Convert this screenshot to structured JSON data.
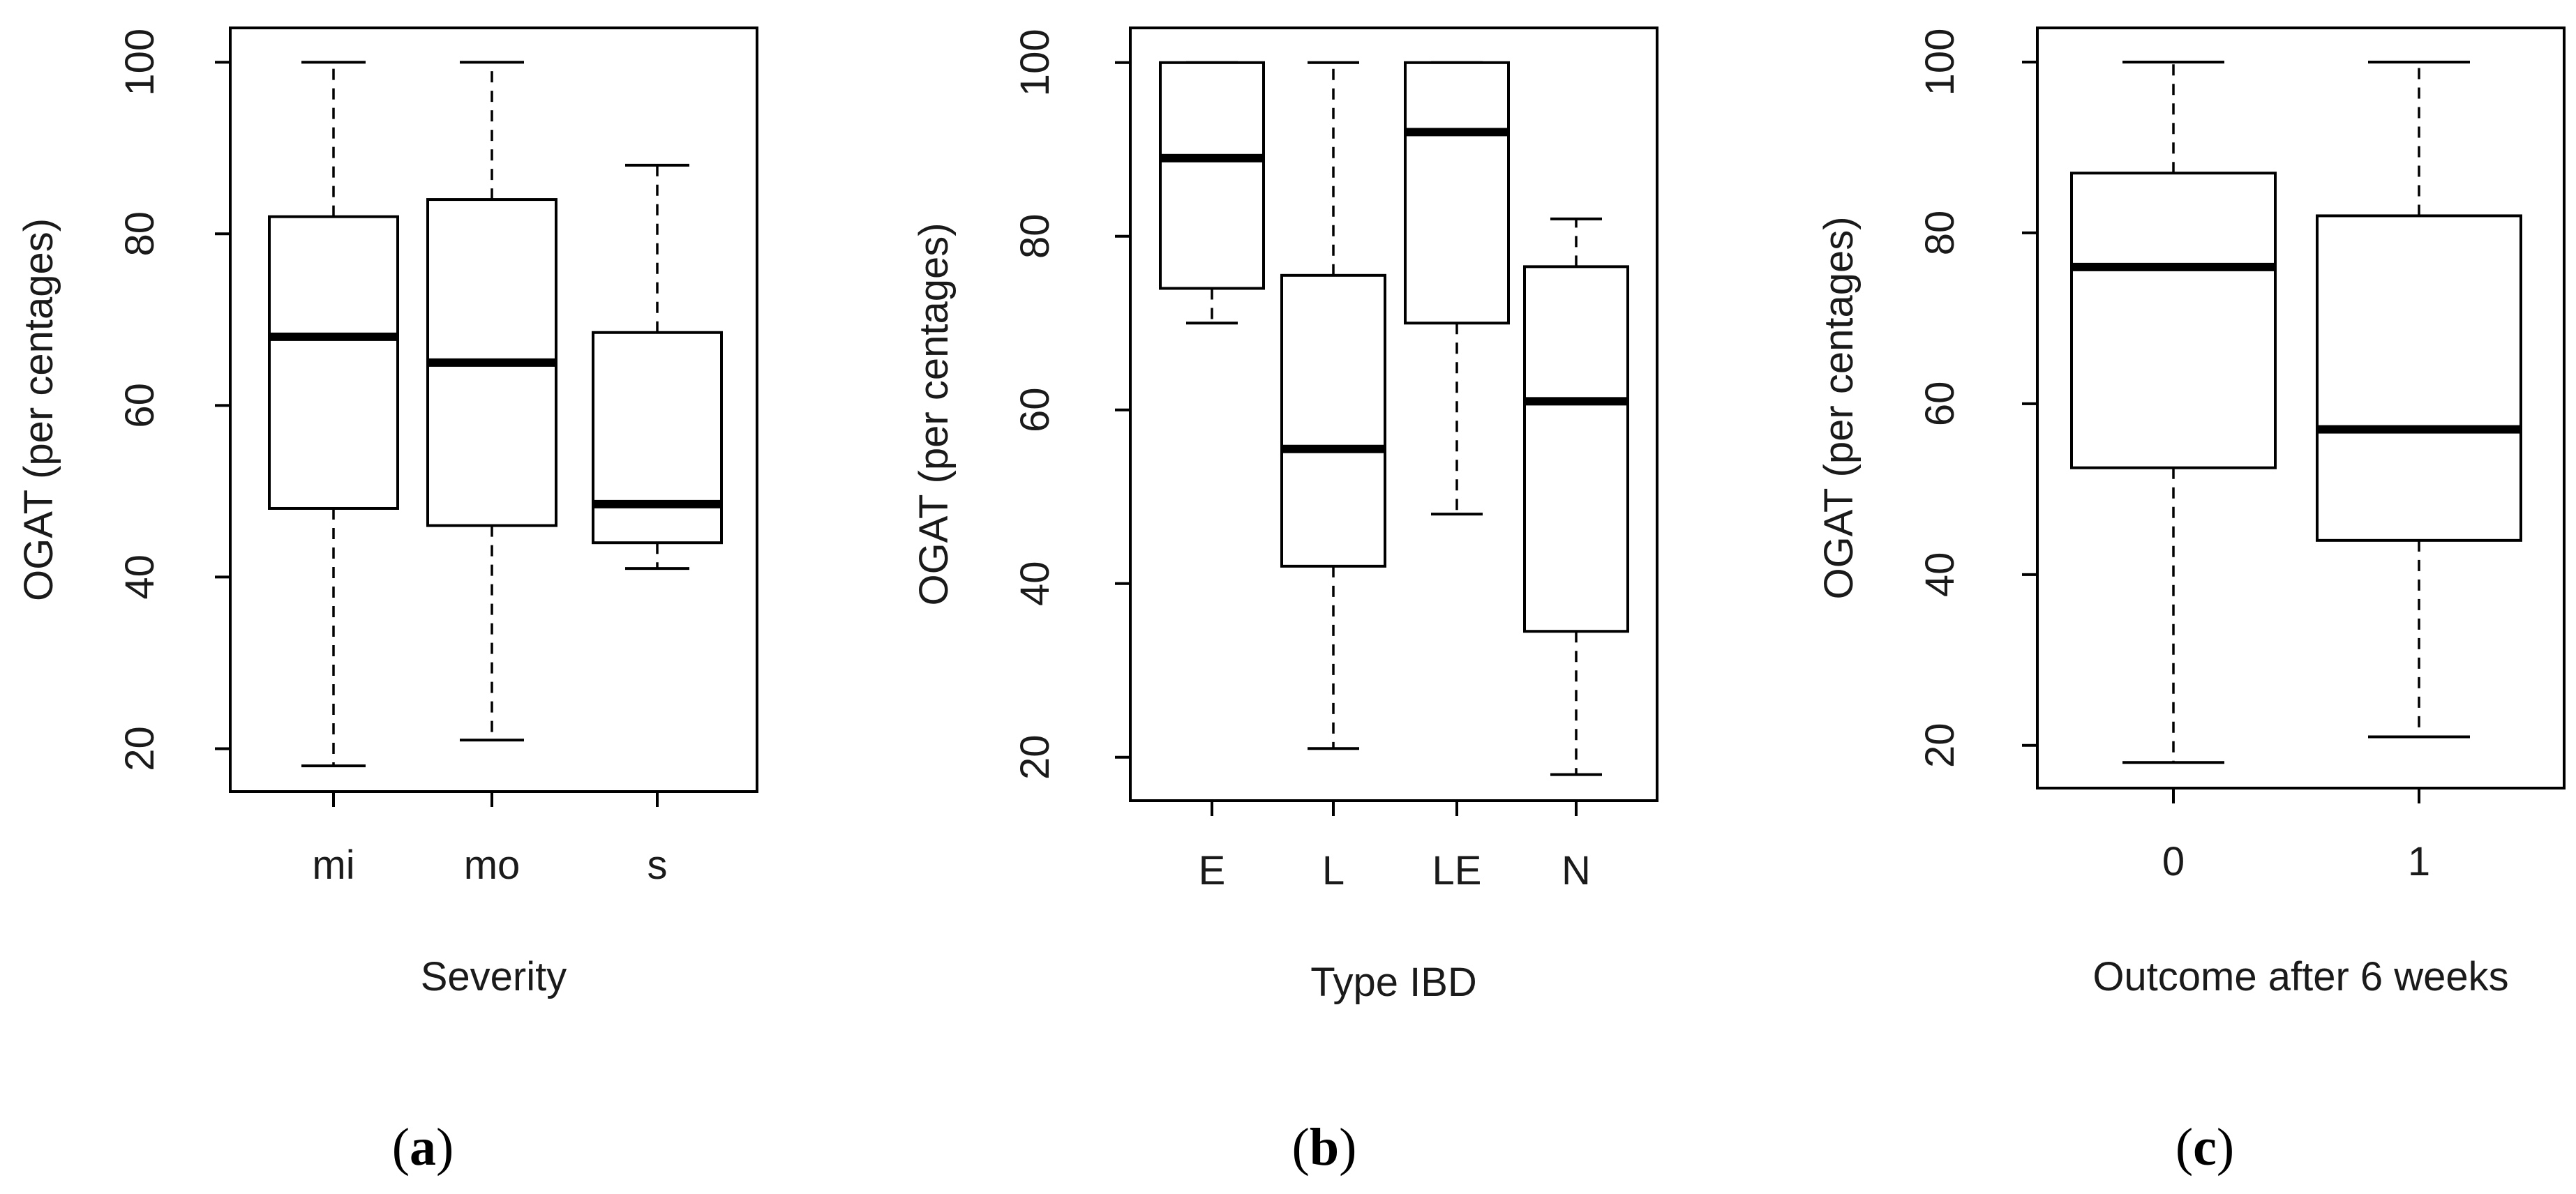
{
  "chart_data": [
    {
      "type": "box",
      "panel_label": "a",
      "categories": [
        "mi",
        "mo",
        "s"
      ],
      "boxes": [
        {
          "min": 18,
          "q1": 48,
          "median": 68,
          "q3": 82,
          "max": 100
        },
        {
          "min": 21,
          "q1": 46,
          "median": 65,
          "q3": 84,
          "max": 100
        },
        {
          "min": 41,
          "q1": 44,
          "median": 48.5,
          "q3": 68.5,
          "max": 88
        }
      ],
      "xlabel": "Severity",
      "ylabel": "OGAT (per centages)",
      "ylim": [
        15,
        104
      ],
      "yticks": [
        20,
        40,
        60,
        80,
        100
      ]
    },
    {
      "type": "box",
      "panel_label": "b",
      "categories": [
        "E",
        "L",
        "LE",
        "N"
      ],
      "boxes": [
        {
          "min": 70,
          "q1": 74,
          "median": 89,
          "q3": 100,
          "max": 100
        },
        {
          "min": 21,
          "q1": 42,
          "median": 55.5,
          "q3": 75.5,
          "max": 100
        },
        {
          "min": 48,
          "q1": 70,
          "median": 92,
          "q3": 100,
          "max": 100
        },
        {
          "min": 18,
          "q1": 34.5,
          "median": 61,
          "q3": 76.5,
          "max": 82
        }
      ],
      "xlabel": "Type IBD",
      "ylabel": "OGAT (per centages)",
      "ylim": [
        15,
        104
      ],
      "yticks": [
        20,
        40,
        60,
        80,
        100
      ]
    },
    {
      "type": "box",
      "panel_label": "c",
      "categories": [
        "0",
        "1"
      ],
      "boxes": [
        {
          "min": 18,
          "q1": 52.5,
          "median": 76,
          "q3": 87,
          "max": 100
        },
        {
          "min": 21,
          "q1": 44,
          "median": 57,
          "q3": 82,
          "max": 100
        }
      ],
      "xlabel": "Outcome after 6 weeks",
      "ylabel": "OGAT (per centages)",
      "ylim": [
        15,
        104
      ],
      "yticks": [
        20,
        40,
        60,
        80,
        100
      ]
    }
  ]
}
